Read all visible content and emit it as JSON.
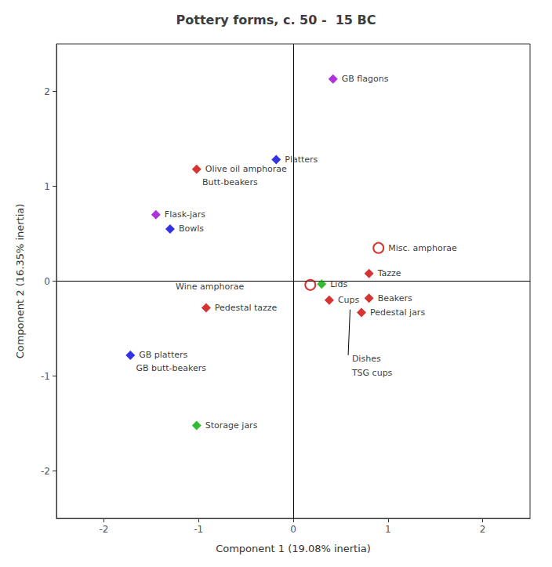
{
  "chart_data": {
    "type": "scatter",
    "title": "Pottery forms, c. 50 -  15 BC",
    "xlabel": "Component 1 (19.08% inertia)",
    "ylabel": "Component 2 (16.35% inertia)",
    "xlim": [
      -2.5,
      2.5
    ],
    "ylim": [
      -2.5,
      2.5
    ],
    "xticks": [
      -2,
      -1,
      0,
      1,
      2
    ],
    "yticks": [
      -2,
      -1,
      0,
      1,
      2
    ],
    "grid": false,
    "points": [
      {
        "name": "GB flagons",
        "x": 0.42,
        "y": 2.13,
        "color": "#9900cc",
        "marker": "diamond"
      },
      {
        "name": "Platters",
        "x": -0.18,
        "y": 1.28,
        "color": "#0000dd",
        "marker": "diamond"
      },
      {
        "name": "Olive oil amphorae",
        "x": -1.02,
        "y": 1.18,
        "color": "#cc0000",
        "marker": "diamond"
      },
      {
        "name": "Flask-jars",
        "x": -1.45,
        "y": 0.7,
        "color": "#9900cc",
        "marker": "diamond"
      },
      {
        "name": "Bowls",
        "x": -1.3,
        "y": 0.55,
        "color": "#0000dd",
        "marker": "diamond"
      },
      {
        "name": "Misc. amphorae",
        "x": 0.9,
        "y": 0.35,
        "color": "#cc0000",
        "marker": "circle-open"
      },
      {
        "name": "Tazze",
        "x": 0.8,
        "y": 0.08,
        "color": "#cc0000",
        "marker": "diamond"
      },
      {
        "name": "Lids",
        "x": 0.3,
        "y": -0.03,
        "color": "#00aa00",
        "marker": "diamond"
      },
      {
        "name": "Cups",
        "x": 0.38,
        "y": -0.2,
        "color": "#cc0000",
        "marker": "diamond"
      },
      {
        "name": "Beakers",
        "x": 0.8,
        "y": -0.18,
        "color": "#cc0000",
        "marker": "diamond"
      },
      {
        "name": "Pedestal tazze",
        "x": -0.92,
        "y": -0.28,
        "color": "#cc0000",
        "marker": "diamond"
      },
      {
        "name": "Pedestal jars",
        "x": 0.72,
        "y": -0.33,
        "color": "#cc0000",
        "marker": "diamond"
      },
      {
        "name": "GB platters",
        "x": -1.72,
        "y": -0.78,
        "color": "#0000dd",
        "marker": "diamond"
      },
      {
        "name": "Storage jars",
        "x": -1.02,
        "y": -1.52,
        "color": "#00aa00",
        "marker": "diamond"
      },
      {
        "x": 0.18,
        "y": -0.04,
        "color": "#cc0000",
        "marker": "circle-open"
      }
    ],
    "annotations": [
      {
        "text": "Butt-beakers",
        "x": -0.96,
        "y": 1.04,
        "align": "left"
      },
      {
        "text": "GB butt-beakers",
        "x": -1.66,
        "y": -0.92,
        "align": "left"
      },
      {
        "text": "Wine amphorae",
        "x": -0.52,
        "y": -0.06,
        "align": "right"
      },
      {
        "text": "Dishes",
        "x": 0.62,
        "y": -0.82,
        "align": "left"
      },
      {
        "text": "TSG cups",
        "x": 0.62,
        "y": -0.97,
        "align": "left"
      }
    ],
    "connector": {
      "x": [
        0.6,
        0.58
      ],
      "y": [
        -0.3,
        -0.78
      ]
    }
  }
}
